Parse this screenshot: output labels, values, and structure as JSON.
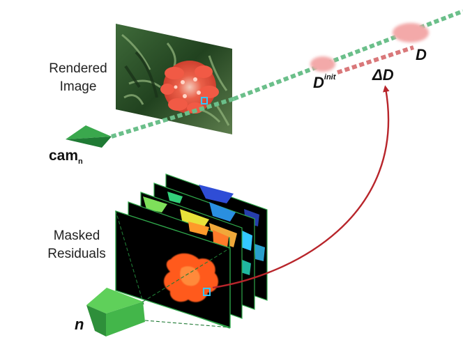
{
  "labels": {
    "rendered_image": [
      "Rendered",
      "Image"
    ],
    "masked_residuals": [
      "Masked",
      "Residuals"
    ],
    "camera": "cam",
    "camera_subscript": "n",
    "n_label": "n",
    "d_init": "D",
    "d_init_superscript": "init",
    "delta_d": "ΔD",
    "d": "D"
  },
  "colors": {
    "ray_dashed": "#6bbf8a",
    "delta_segment": "#d9787a",
    "arrow": "#b8252b",
    "camera_green": "#3aa84d",
    "camera_green_dark": "#1f7a34",
    "blob_pink": "#f3a9a9",
    "frame_border": "#2fa64a",
    "residual_orange": "#ff5a1a",
    "residual_cyan": "#33c8ff",
    "residual_blue": "#2f4dd6",
    "flower_red": "#f0503a"
  },
  "icons": {
    "camera_top": "camera-pyramid-icon",
    "camera_bottom": "camera-frustum-icon"
  }
}
